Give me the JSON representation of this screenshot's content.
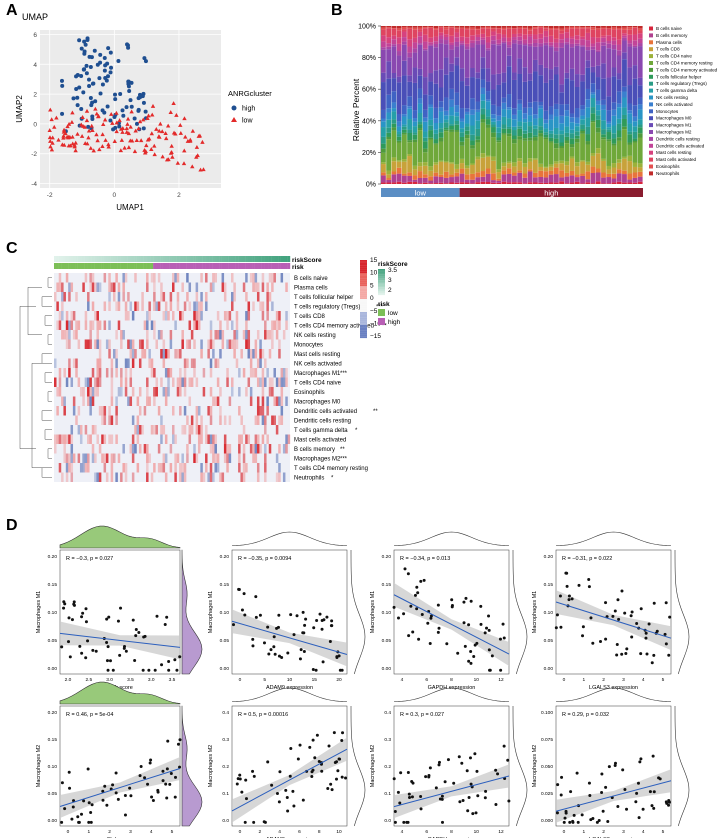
{
  "panels": {
    "a": "A",
    "b": "B",
    "c": "C",
    "d": "D"
  },
  "colors": {
    "high": "#1f4f91",
    "low": "#e32a2a",
    "reg_line": "#2c5fbd",
    "green_density": "#98c97a",
    "purple_density": "#b89ad0",
    "heat_high": "#d7262d",
    "heat_low": "#2b4aa0"
  },
  "umap": {
    "title": "UMAP",
    "xlabel": "UMAP1",
    "ylabel": "UMAP2",
    "legend_title": "ANRGcluster",
    "legend": [
      {
        "label": "high",
        "color": "#1f4f91",
        "shape": "circle"
      },
      {
        "label": "low",
        "color": "#e32a2a",
        "shape": "triangle"
      }
    ],
    "xticks": [
      -2,
      0,
      2
    ],
    "yticks": [
      6,
      4,
      2,
      0,
      -2,
      -4
    ],
    "xlim": [
      -2.3,
      3.3
    ],
    "ylim": [
      -4.3,
      6.3
    ],
    "grid": true
  },
  "bar": {
    "ylabel": "Relative Percent",
    "yticks": [
      "0%",
      "20%",
      "40%",
      "60%",
      "80%",
      "100%"
    ],
    "groups": [
      "low",
      "high"
    ],
    "group_colors": [
      "#5b8ec4",
      "#8a1c2f"
    ],
    "group_counts": [
      15,
      35
    ],
    "legend": [
      {
        "label": "B cells naive",
        "color": "#d7263d"
      },
      {
        "label": "B cells memory",
        "color": "#b0408f"
      },
      {
        "label": "Plasma cells",
        "color": "#e8743b"
      },
      {
        "label": "T cells CD8",
        "color": "#c8a23a"
      },
      {
        "label": "T cells CD4 naive",
        "color": "#9bb13a"
      },
      {
        "label": "T cells CD4 memory resting",
        "color": "#6fa83a"
      },
      {
        "label": "T cells CD4 memory activated",
        "color": "#4f9a3c"
      },
      {
        "label": "T cells follicular helper",
        "color": "#2f9a5a"
      },
      {
        "label": "T cells regulatory (Tregs)",
        "color": "#2b9c86"
      },
      {
        "label": "T cells gamma delta",
        "color": "#26a0a8"
      },
      {
        "label": "NK cells resting",
        "color": "#2a95c6"
      },
      {
        "label": "NK cells activated",
        "color": "#3a7fcf"
      },
      {
        "label": "Monocytes",
        "color": "#3f63c4"
      },
      {
        "label": "Macrophages M0",
        "color": "#4a4fb8"
      },
      {
        "label": "Macrophages M1",
        "color": "#6a4bb6"
      },
      {
        "label": "Macrophages M2",
        "color": "#8a48b0"
      },
      {
        "label": "Dendritic cells resting",
        "color": "#a846a6"
      },
      {
        "label": "Dendritic cells activated",
        "color": "#c24498"
      },
      {
        "label": "Mast cells resting",
        "color": "#d6427e"
      },
      {
        "label": "Mast cells activated",
        "color": "#df4460"
      },
      {
        "label": "Eosinophils",
        "color": "#e35050"
      },
      {
        "label": "Neutrophils",
        "color": "#c02a2a"
      }
    ]
  },
  "heatmap": {
    "annotation_labels": [
      "riskScore",
      "risk"
    ],
    "row_labels": [
      "B cells naive",
      "Plasma cells",
      "T cells follicular helper",
      "T cells regulatory (Tregs)",
      "T cells CD8",
      "T cells CD4 memory activated",
      "NK cells resting",
      "Monocytes",
      "Mast cells resting",
      "NK cells activated",
      "Macrophages M1",
      "T cells CD4 naive",
      "Eosinophils",
      "Macrophages M0",
      "Dendritic cells activated",
      "Dendritic cells resting",
      "T cells gamma delta",
      "Mast cells activated",
      "B cells memory",
      "Macrophages M2",
      "T cells CD4 memory resting",
      "Neutrophils"
    ],
    "row_sig": [
      "",
      "",
      "",
      "***",
      "",
      "**",
      "",
      "",
      "",
      "",
      "***",
      "",
      "",
      "",
      "**",
      "",
      "*",
      "",
      "**",
      "***",
      "",
      "*"
    ],
    "colorbar_ticks": [
      "15",
      "10",
      "5",
      "0",
      "−5",
      "−10",
      "−15"
    ],
    "riskscore_legend": {
      "title": "riskScore",
      "ticks": [
        "3.5",
        "3",
        "2"
      ]
    },
    "risk_legend": {
      "title": "risk",
      "items": [
        {
          "label": "low",
          "color": "#7cbf57"
        },
        {
          "label": "high",
          "color": "#b85fb5"
        }
      ]
    }
  },
  "scatter_plots": [
    {
      "stat": "R = −0.3, p = 0.027",
      "xlabel": "Risk score",
      "ylabel": "Macrophages M1",
      "xticks": [
        "2.0",
        "2.5",
        "3.0",
        "3.5",
        "3.0",
        "3.5"
      ],
      "yticks": [
        "0.20",
        "0.15",
        "0.10",
        "0.05",
        "0.00"
      ],
      "xlim": [
        1.9,
        3.9
      ],
      "ylim": [
        -0.01,
        0.22
      ],
      "slope": -0.013,
      "intercept": 0.09,
      "big": true
    },
    {
      "stat": "R = −0.35, p = 0.0094",
      "xlabel": "ADAM9 expression",
      "ylabel": "Macrophages M1",
      "xticks": [
        "0",
        "5",
        "10",
        "15",
        "20"
      ],
      "yticks": [
        "0.20",
        "0.15",
        "0.10",
        "0.05",
        "0.00"
      ],
      "xlim": [
        -1,
        21
      ],
      "ylim": [
        -0.01,
        0.22
      ],
      "slope": -0.0028,
      "intercept": 0.085,
      "big": false
    },
    {
      "stat": "R = −0.34, p = 0.013",
      "xlabel": "GAPDH expression",
      "ylabel": "Macrophages M1",
      "xticks": [
        "4",
        "6",
        "8",
        "10",
        "12"
      ],
      "yticks": [
        "0.20",
        "0.15",
        "0.10",
        "0.05",
        "0.00"
      ],
      "xlim": [
        3,
        13
      ],
      "ylim": [
        -0.01,
        0.22
      ],
      "slope": -0.011,
      "intercept": 0.17,
      "big": false
    },
    {
      "stat": "R = −0.31, p = 0.022",
      "xlabel": "LGALS3 expression",
      "ylabel": "Macrophages M1",
      "xticks": [
        "0",
        "1",
        "2",
        "3",
        "4",
        "5"
      ],
      "yticks": [
        "0.20",
        "0.15",
        "0.10",
        "0.05",
        "0.00"
      ],
      "xlim": [
        -0.3,
        5.3
      ],
      "ylim": [
        -0.01,
        0.22
      ],
      "slope": -0.012,
      "intercept": 0.12,
      "big": false
    },
    {
      "stat": "R = 0.46, p = 5e-04",
      "xlabel": "Risk score",
      "ylabel": "Macrophages M2",
      "xticks": [
        "0",
        "1",
        "2",
        "3",
        "4",
        "5"
      ],
      "yticks": [
        "0.20",
        "0.15",
        "0.10",
        "0.05",
        "0.00"
      ],
      "xlim": [
        -0.2,
        5.4
      ],
      "ylim": [
        -0.01,
        0.22
      ],
      "slope": 0.013,
      "intercept": 0.03,
      "big": true
    },
    {
      "stat": "R = 0.5, p = 0.00016",
      "xlabel": "ADAM9 expression",
      "ylabel": "Macrophages M2",
      "xticks": [
        "0",
        "2",
        "4",
        "6",
        "8",
        "10"
      ],
      "yticks": [
        "0.4",
        "0.3",
        "0.2",
        "0.1",
        "0.0"
      ],
      "xlim": [
        -0.5,
        10.5
      ],
      "ylim": [
        -0.02,
        0.45
      ],
      "slope": 0.022,
      "intercept": 0.05,
      "big": false
    },
    {
      "stat": "R = 0.3, p = 0.027",
      "xlabel": "GAPDH expression",
      "ylabel": "Macrophages M2",
      "xticks": [
        "4",
        "6",
        "8",
        "10",
        "12"
      ],
      "yticks": [
        "0.4",
        "0.3",
        "0.2",
        "0.1",
        "0.0"
      ],
      "xlim": [
        3,
        13
      ],
      "ylim": [
        -0.02,
        0.45
      ],
      "slope": 0.012,
      "intercept": 0.02,
      "big": false
    },
    {
      "stat": "R = 0.29, p = 0.032",
      "xlabel": "LGALS3 expression",
      "ylabel": "Macrophages M2",
      "xticks": [
        "0",
        "1",
        "2",
        "3",
        "4",
        "5"
      ],
      "yticks": [
        "0.100",
        "0.075",
        "0.050",
        "0.025",
        "0.000"
      ],
      "xlim": [
        -0.3,
        5.3
      ],
      "ylim": [
        -0.005,
        0.105
      ],
      "slope": 0.005,
      "intercept": 0.01,
      "big": false
    }
  ]
}
